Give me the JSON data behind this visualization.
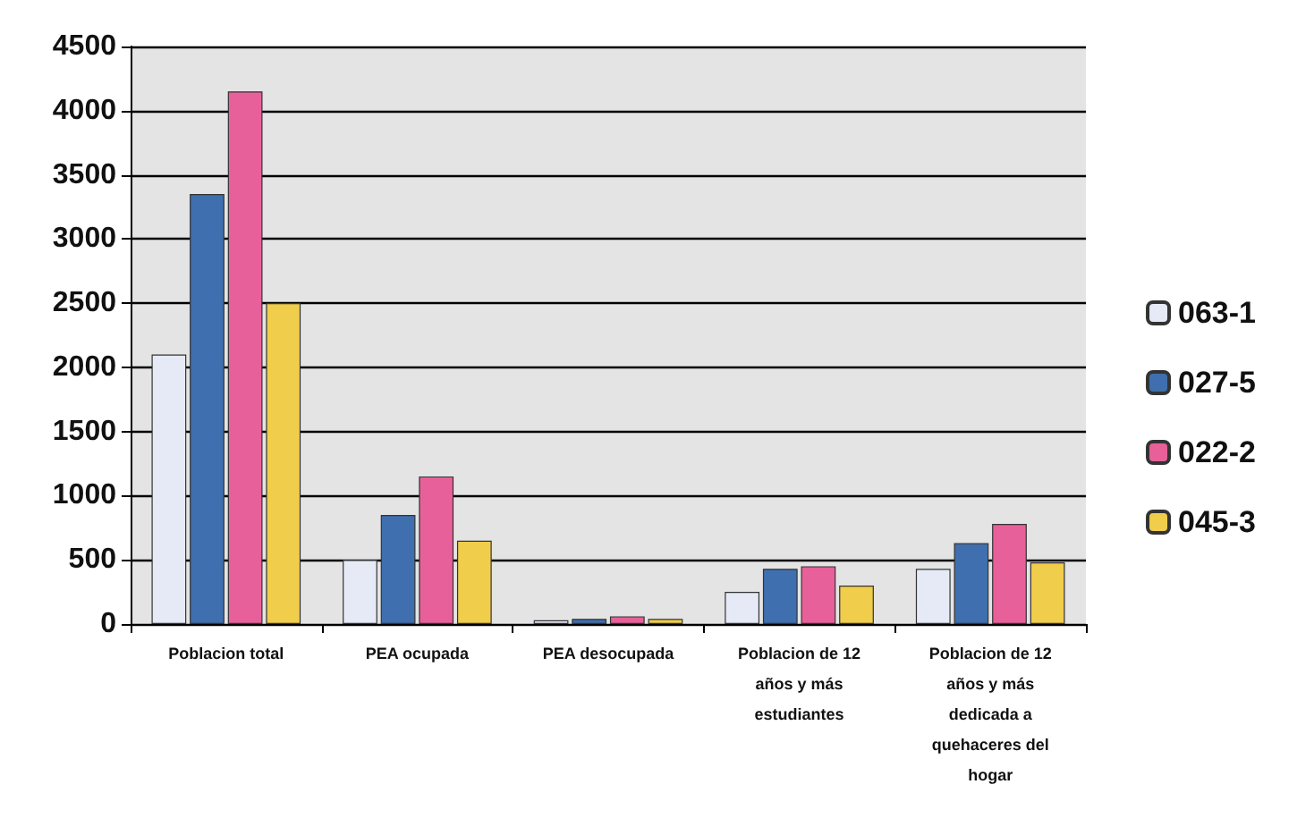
{
  "chart_data": {
    "type": "bar",
    "categories": [
      "Poblacion total",
      "PEA ocupada",
      "PEA desocupada",
      "Poblacion de 12\naños y más\nestudiantes",
      "Poblacion de 12\naños y más\ndedicada a\nquehaceres del\nhogar"
    ],
    "series": [
      {
        "name": "063-1",
        "color": "#e6eaf6",
        "values": [
          2100,
          500,
          30,
          250,
          430
        ]
      },
      {
        "name": "027-5",
        "color": "#3f6fae",
        "values": [
          3350,
          850,
          40,
          430,
          630
        ]
      },
      {
        "name": "022-2",
        "color": "#e8609a",
        "values": [
          4150,
          1150,
          60,
          450,
          780
        ]
      },
      {
        "name": "045-3",
        "color": "#f0cd4a",
        "values": [
          2500,
          650,
          40,
          300,
          480
        ]
      }
    ],
    "ylim": [
      0,
      4500
    ],
    "yticks": [
      0,
      500,
      1000,
      1500,
      2000,
      2500,
      3000,
      3500,
      4000,
      4500
    ],
    "grid": "y",
    "legend": "right"
  }
}
